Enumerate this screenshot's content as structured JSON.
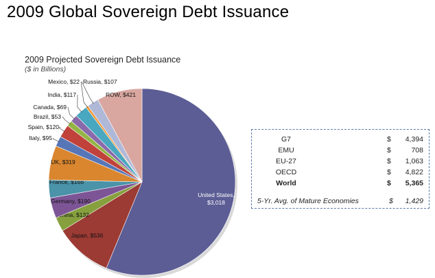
{
  "header": {
    "title": "2009 Global Sovereign Debt Issuance"
  },
  "summary": {
    "rows": [
      {
        "label": "G7",
        "currency": "$",
        "value": "4,394",
        "bold": false
      },
      {
        "label": "EMU",
        "currency": "$",
        "value": "708",
        "bold": false
      },
      {
        "label": "EU-27",
        "currency": "$",
        "value": "1,063",
        "bold": false
      },
      {
        "label": "OECD",
        "currency": "$",
        "value": "4,822",
        "bold": false
      },
      {
        "label": "World",
        "currency": "$",
        "value": "5,365",
        "bold": true
      }
    ],
    "avg": {
      "label": "5-Yr. Avg. of Mature Economies",
      "currency": "$",
      "value": "1,429"
    }
  },
  "chart_data": {
    "type": "pie",
    "title": "2009 Projected Sovereign Debt Issuance",
    "subtitle": "($ in Billions)",
    "start": "12 o'clock, clockwise",
    "slices": [
      {
        "name": "United States",
        "value": 3018,
        "label": "United States,\n$3,018",
        "color": "#5c5d95"
      },
      {
        "name": "Japan",
        "value": 536,
        "label": "Japan, $536",
        "color": "#9c3a34"
      },
      {
        "name": "China",
        "value": 132,
        "label": "China, $132",
        "color": "#86a03e"
      },
      {
        "name": "Germany",
        "value": 190,
        "label": "Germany, $190",
        "color": "#7d5596"
      },
      {
        "name": "France",
        "value": 166,
        "label": "France, $166",
        "color": "#4a93a8"
      },
      {
        "name": "UK",
        "value": 319,
        "label": "UK, $319",
        "color": "#d9862f"
      },
      {
        "name": "Italy",
        "value": 95,
        "label": "Italy, $95",
        "color": "#5676b8"
      },
      {
        "name": "Spain",
        "value": 120,
        "label": "Spain, $120",
        "color": "#c0423b"
      },
      {
        "name": "Brazil",
        "value": 53,
        "label": "Brazil, $53",
        "color": "#93b544"
      },
      {
        "name": "Canada",
        "value": 69,
        "label": "Canada, $69",
        "color": "#8a6aaa"
      },
      {
        "name": "India",
        "value": 117,
        "label": "India, $117",
        "color": "#4aa7c0"
      },
      {
        "name": "Mexico",
        "value": 22,
        "label": "Mexico, $22",
        "color": "#f2962f"
      },
      {
        "name": "Russia",
        "value": 107,
        "label": "Russia, $107",
        "color": "#b0b8d8"
      },
      {
        "name": "ROW",
        "value": 421,
        "label": "ROW, $421",
        "color": "#d9a7a0"
      }
    ]
  }
}
